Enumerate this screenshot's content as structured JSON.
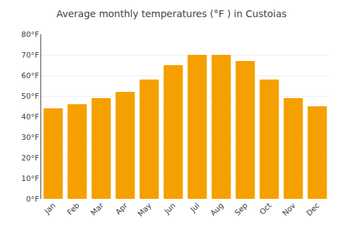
{
  "chart_data": {
    "type": "bar",
    "title": "Average monthly temperatures (°F ) in Custoias",
    "categories": [
      "Jan",
      "Feb",
      "Mar",
      "Apr",
      "May",
      "Jun",
      "Jul",
      "Aug",
      "Sep",
      "Oct",
      "Nov",
      "Dec"
    ],
    "values": [
      44,
      46,
      49,
      52,
      58,
      65,
      70,
      70,
      67,
      58,
      49,
      45
    ],
    "color": "#F5A000",
    "ylim": [
      0,
      80
    ],
    "yticks": [
      {
        "value": 0,
        "label": "0°F"
      },
      {
        "value": 10,
        "label": "10°F"
      },
      {
        "value": 20,
        "label": "20°F"
      },
      {
        "value": 30,
        "label": "30°F"
      },
      {
        "value": 40,
        "label": "40°F"
      },
      {
        "value": 50,
        "label": "50°F"
      },
      {
        "value": 60,
        "label": "60°F"
      },
      {
        "value": 70,
        "label": "70°F"
      },
      {
        "value": 80,
        "label": "80°F"
      }
    ],
    "grid": true
  }
}
